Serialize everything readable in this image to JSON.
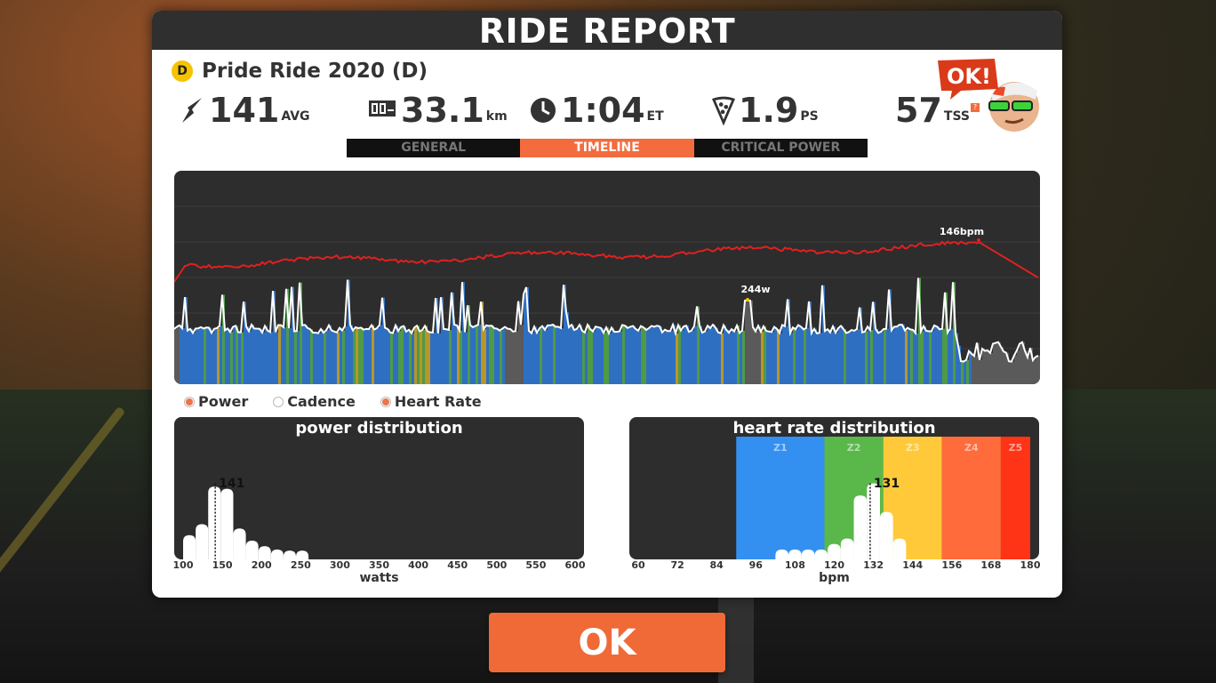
{
  "header": {
    "title": "RIDE REPORT"
  },
  "ride": {
    "category": "D",
    "name": "Pride Ride 2020 (D)"
  },
  "stats": {
    "power": {
      "icon": "lightning-icon",
      "value": "141",
      "unit": "AVG"
    },
    "distance": {
      "icon": "odometer-icon",
      "value": "33.1",
      "unit": "km"
    },
    "time": {
      "icon": "clock-icon",
      "value": "1:04",
      "unit": "ET"
    },
    "pizza": {
      "icon": "pizza-slice-icon",
      "value": "1.9",
      "unit": "PS"
    },
    "tss": {
      "value": "57",
      "unit": "TSS",
      "help": "?"
    }
  },
  "avatar": {
    "bubble": "OK!"
  },
  "tabs": [
    {
      "label": "GENERAL",
      "active": false
    },
    {
      "label": "TIMELINE",
      "active": true
    },
    {
      "label": "CRITICAL POWER",
      "active": false
    }
  ],
  "timeline": {
    "hr_peak_label": "146bpm",
    "power_peak_label": "244w",
    "colors": {
      "hr_line": "#e02020",
      "power_line": "#ffffff",
      "z1": "#5a5a5a",
      "z2": "#2f6fc1",
      "z3": "#4e9a47",
      "z4": "#b8962a"
    }
  },
  "legend": [
    {
      "label": "Power",
      "selected": true
    },
    {
      "label": "Cadence",
      "selected": false
    },
    {
      "label": "Heart Rate",
      "selected": true
    }
  ],
  "chart_data": [
    {
      "type": "bar",
      "title": "power distribution",
      "xlabel": "watts",
      "tick_labels": [
        "100",
        "150",
        "200",
        "250",
        "300",
        "350",
        "400",
        "450",
        "500",
        "550",
        "600"
      ],
      "xlim": [
        100,
        600
      ],
      "average_label": "141",
      "average": 141,
      "bin_width": 16,
      "bins": [
        100,
        116,
        132,
        148,
        164,
        180,
        196,
        212,
        228,
        244
      ],
      "values": [
        0.22,
        0.32,
        0.66,
        0.64,
        0.28,
        0.17,
        0.12,
        0.09,
        0.08,
        0.08
      ]
    },
    {
      "type": "bar",
      "title": "heart rate distribution",
      "xlabel": "bpm",
      "tick_labels": [
        "60",
        "72",
        "84",
        "96",
        "108",
        "120",
        "132",
        "144",
        "156",
        "168",
        "180"
      ],
      "xlim": [
        60,
        180
      ],
      "average_label": "131",
      "average": 131,
      "bin_width": 4,
      "bins": [
        102,
        106,
        110,
        114,
        118,
        122,
        126,
        130,
        134,
        138
      ],
      "values": [
        0.09,
        0.09,
        0.09,
        0.09,
        0.14,
        0.19,
        0.58,
        0.69,
        0.43,
        0.19
      ],
      "zones": [
        {
          "label": "Z1",
          "from": 90,
          "to": 117,
          "color": "#3490f0"
        },
        {
          "label": "Z2",
          "from": 117,
          "to": 135,
          "color": "#5ab84b"
        },
        {
          "label": "Z3",
          "from": 135,
          "to": 153,
          "color": "#ffc93a"
        },
        {
          "label": "Z4",
          "from": 153,
          "to": 171,
          "color": "#ff6b3a"
        },
        {
          "label": "Z5",
          "from": 171,
          "to": 180,
          "color": "#ff3316"
        }
      ]
    }
  ],
  "button": {
    "label": "OK"
  }
}
